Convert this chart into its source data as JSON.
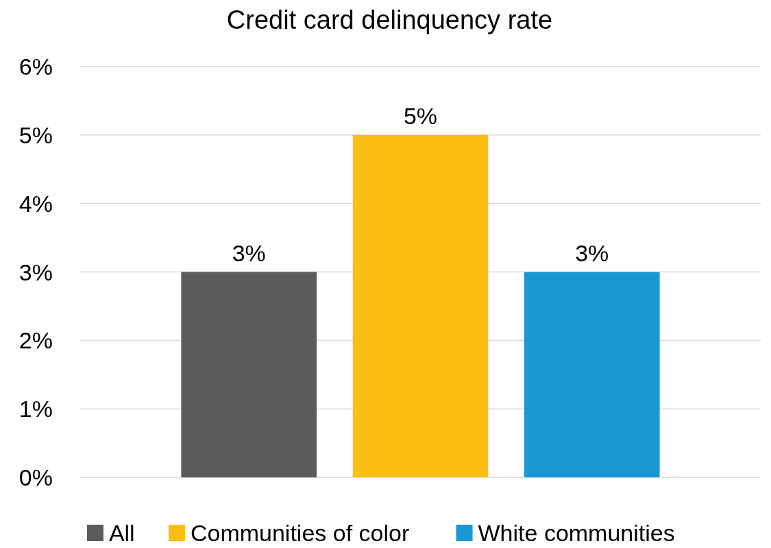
{
  "chart_data": {
    "type": "bar",
    "title": "Credit card delinquency rate",
    "categories": [
      null
    ],
    "series": [
      {
        "name": "All",
        "color": "#5d5a5a",
        "values": [
          3
        ],
        "value_labels": [
          "3%"
        ]
      },
      {
        "name": "Communities of color",
        "color": "#fbbf14",
        "values": [
          5
        ],
        "value_labels": [
          "5%"
        ]
      },
      {
        "name": "White communities",
        "color": "#1a98d4",
        "values": [
          3
        ],
        "value_labels": [
          "3%"
        ]
      }
    ],
    "ylim": [
      0,
      6
    ],
    "yticks": [
      {
        "value": 0,
        "label": "0%"
      },
      {
        "value": 1,
        "label": "1%"
      },
      {
        "value": 2,
        "label": "2%"
      },
      {
        "value": 3,
        "label": "3%"
      },
      {
        "value": 4,
        "label": "4%"
      },
      {
        "value": 5,
        "label": "5%"
      },
      {
        "value": 6,
        "label": "6%"
      }
    ],
    "grid": "y",
    "legend": "bottom"
  }
}
